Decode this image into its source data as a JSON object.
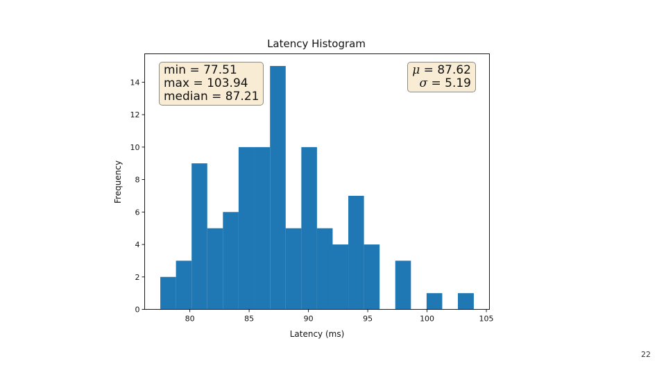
{
  "page_number": "22",
  "chart_data": {
    "type": "bar",
    "title": "Latency Histogram",
    "xlabel": "Latency (ms)",
    "ylabel": "Frequency",
    "xlim": [
      76.19,
      105.26
    ],
    "ylim": [
      0,
      15.75
    ],
    "xticks": [
      80,
      85,
      90,
      95,
      100,
      105
    ],
    "yticks": [
      0,
      2,
      4,
      6,
      8,
      10,
      12,
      14
    ],
    "bin_edges": [
      77.51,
      78.83,
      80.15,
      81.47,
      82.79,
      84.11,
      85.43,
      86.76,
      88.08,
      89.4,
      90.72,
      92.04,
      93.36,
      94.68,
      96.0,
      97.32,
      98.64,
      99.96,
      101.28,
      102.6,
      103.94
    ],
    "counts": [
      2,
      3,
      9,
      5,
      6,
      10,
      10,
      15,
      5,
      10,
      5,
      4,
      7,
      4,
      0,
      3,
      0,
      1,
      0,
      1
    ],
    "color": "#1f77b4",
    "grid": false
  },
  "annotations": {
    "left": {
      "min_label": "min = 77.51",
      "max_label": "max = 103.94",
      "median_label": "median = 87.21"
    },
    "right": {
      "mu_symbol": "μ",
      "mu_value": " = 87.62",
      "sigma_symbol": "σ",
      "sigma_value": " = 5.19"
    },
    "box_color": "#f8ecd5"
  }
}
